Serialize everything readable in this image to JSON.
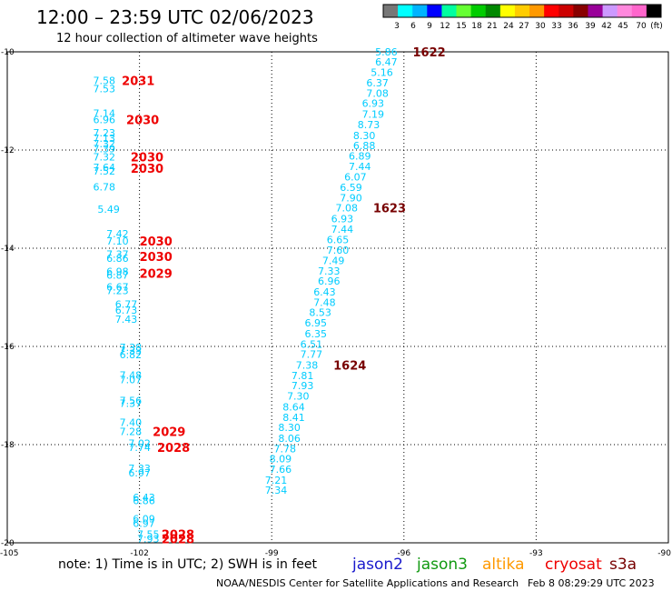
{
  "title": "12:00 – 23:59 UTC 02/06/2023",
  "subtitle": "12 hour collection of altimeter wave heights",
  "colorbar": {
    "labels": [
      "3",
      "6",
      "9",
      "12",
      "15",
      "18",
      "21",
      "24",
      "27",
      "30",
      "33",
      "36",
      "39",
      "42",
      "45",
      "70",
      "(ft)"
    ],
    "colors": [
      "#777777",
      "#00ffff",
      "#00b4ff",
      "#0000ff",
      "#00ffa0",
      "#66ff33",
      "#00cc00",
      "#008800",
      "#ffff00",
      "#ffcc00",
      "#ff9900",
      "#ff0000",
      "#cc0000",
      "#880000",
      "#990099",
      "#cc99ff",
      "#ff88dd",
      "#ff66cc",
      "#000000"
    ]
  },
  "footer": {
    "note": "note:  1) Time is in UTC; 2) SWH is in feet",
    "credit": "NOAA/NESDIS Center for Satellite Applications and Research",
    "timestamp": "Feb  8 08:29:29 UTC 2023"
  },
  "legend": [
    {
      "name": "jason2",
      "color": "#1a1acc"
    },
    {
      "name": "jason3",
      "color": "#119911"
    },
    {
      "name": "altika",
      "color": "#ff9900"
    },
    {
      "name": "cryosat",
      "color": "#ee0000"
    },
    {
      "name": "s3a",
      "color": "#770000"
    }
  ],
  "chart_data": {
    "type": "scatter",
    "title": "12:00 – 23:59 UTC 02/06/2023",
    "subtitle": "12 hour collection of altimeter wave heights",
    "xlim": [
      -105,
      -90
    ],
    "ylim": [
      -20,
      -10
    ],
    "x_ticks": [
      -105,
      -102,
      -99,
      -96,
      -93,
      -90
    ],
    "x_tick_labels": [
      "-105",
      "-102",
      "-99",
      "-96",
      "-93",
      "-90"
    ],
    "y_ticks": [
      -10,
      -12,
      -14,
      -16,
      -18,
      -20
    ],
    "y_tick_labels": [
      "-10",
      "-12",
      "-14",
      "-16",
      "-18",
      "-20"
    ],
    "grid": true,
    "value_color": "#00ccff",
    "series": [
      {
        "name": "cryosat",
        "color": "#ee0000",
        "points": [
          {
            "lon": -102.8,
            "lat": -10.58,
            "swh": "7.58"
          },
          {
            "lon": -102.8,
            "lat": -10.75,
            "swh": "7.53"
          },
          {
            "lon": -102.8,
            "lat": -11.25,
            "swh": "7.14"
          },
          {
            "lon": -102.8,
            "lat": -11.38,
            "swh": "6.96"
          },
          {
            "lon": -102.8,
            "lat": -11.65,
            "swh": "7.23"
          },
          {
            "lon": -102.8,
            "lat": -11.76,
            "swh": "7.13"
          },
          {
            "lon": -102.8,
            "lat": -11.87,
            "swh": "7.32"
          },
          {
            "lon": -102.8,
            "lat": -11.97,
            "swh": "7.39"
          },
          {
            "lon": -102.8,
            "lat": -12.14,
            "swh": "7.32"
          },
          {
            "lon": -102.8,
            "lat": -12.35,
            "swh": "7.64"
          },
          {
            "lon": -102.8,
            "lat": -12.43,
            "swh": "7.52"
          },
          {
            "lon": -102.8,
            "lat": -12.75,
            "swh": "6.78"
          },
          {
            "lon": -102.7,
            "lat": -13.2,
            "swh": "5.49"
          },
          {
            "lon": -102.5,
            "lat": -13.7,
            "swh": "7.42"
          },
          {
            "lon": -102.5,
            "lat": -13.85,
            "swh": "7.10"
          },
          {
            "lon": -102.5,
            "lat": -14.12,
            "swh": "7.37"
          },
          {
            "lon": -102.5,
            "lat": -14.2,
            "swh": "6.86"
          },
          {
            "lon": -102.5,
            "lat": -14.47,
            "swh": "6.98"
          },
          {
            "lon": -102.5,
            "lat": -14.55,
            "swh": "6.87"
          },
          {
            "lon": -102.5,
            "lat": -14.79,
            "swh": "6.67"
          },
          {
            "lon": -102.5,
            "lat": -14.86,
            "swh": "7.23"
          },
          {
            "lon": -102.3,
            "lat": -15.14,
            "swh": "6.77"
          },
          {
            "lon": -102.3,
            "lat": -15.26,
            "swh": "6.73"
          },
          {
            "lon": -102.3,
            "lat": -15.44,
            "swh": "7.43"
          },
          {
            "lon": -102.2,
            "lat": -16.02,
            "swh": "7.38"
          },
          {
            "lon": -102.2,
            "lat": -16.08,
            "swh": "7.33"
          },
          {
            "lon": -102.2,
            "lat": -16.17,
            "swh": "6.82"
          },
          {
            "lon": -102.2,
            "lat": -16.58,
            "swh": "7.48"
          },
          {
            "lon": -102.2,
            "lat": -16.68,
            "swh": "7.07"
          },
          {
            "lon": -102.2,
            "lat": -17.1,
            "swh": "7.56"
          },
          {
            "lon": -102.2,
            "lat": -17.16,
            "swh": "7.37"
          },
          {
            "lon": -102.2,
            "lat": -17.55,
            "swh": "7.40"
          },
          {
            "lon": -102.2,
            "lat": -17.73,
            "swh": "7.28"
          },
          {
            "lon": -102.0,
            "lat": -17.97,
            "swh": "7.02"
          },
          {
            "lon": -102.0,
            "lat": -18.06,
            "swh": "7.74"
          },
          {
            "lon": -102.0,
            "lat": -18.48,
            "swh": "7.33"
          },
          {
            "lon": -102.0,
            "lat": -18.57,
            "swh": "6.97"
          },
          {
            "lon": -101.9,
            "lat": -19.07,
            "swh": "6.43"
          },
          {
            "lon": -101.9,
            "lat": -19.14,
            "swh": "6.86"
          },
          {
            "lon": -101.9,
            "lat": -19.51,
            "swh": "6.09"
          },
          {
            "lon": -101.9,
            "lat": -19.6,
            "swh": "6.97"
          },
          {
            "lon": -101.8,
            "lat": -19.82,
            "swh": "7.55"
          },
          {
            "lon": -101.8,
            "lat": -19.92,
            "swh": "7.93"
          }
        ],
        "time_labels": [
          {
            "lon": -102.4,
            "lat": -10.58,
            "text": "2031"
          },
          {
            "lon": -102.3,
            "lat": -11.38,
            "text": "2030"
          },
          {
            "lon": -102.2,
            "lat": -12.14,
            "text": "2030"
          },
          {
            "lon": -102.2,
            "lat": -12.37,
            "text": "2030"
          },
          {
            "lon": -102.0,
            "lat": -13.85,
            "text": "2030"
          },
          {
            "lon": -102.0,
            "lat": -14.17,
            "text": "2030"
          },
          {
            "lon": -102.0,
            "lat": -14.51,
            "text": "2029"
          },
          {
            "lon": -101.7,
            "lat": -17.73,
            "text": "2029"
          },
          {
            "lon": -101.6,
            "lat": -18.06,
            "text": "2028"
          },
          {
            "lon": -101.5,
            "lat": -19.82,
            "text": "2028"
          },
          {
            "lon": -101.5,
            "lat": -19.92,
            "text": "2028"
          }
        ]
      },
      {
        "name": "s3a",
        "color": "#770000",
        "points": [
          {
            "lon": -96.4,
            "lat": -10.0,
            "swh": "5.86"
          },
          {
            "lon": -96.4,
            "lat": -10.2,
            "swh": "6.47"
          },
          {
            "lon": -96.5,
            "lat": -10.42,
            "swh": "5.16"
          },
          {
            "lon": -96.6,
            "lat": -10.63,
            "swh": "6.37"
          },
          {
            "lon": -96.6,
            "lat": -10.84,
            "swh": "7.08"
          },
          {
            "lon": -96.7,
            "lat": -11.05,
            "swh": "6.93"
          },
          {
            "lon": -96.7,
            "lat": -11.27,
            "swh": "7.19"
          },
          {
            "lon": -96.8,
            "lat": -11.48,
            "swh": "8.73"
          },
          {
            "lon": -96.9,
            "lat": -11.7,
            "swh": "8.30"
          },
          {
            "lon": -96.9,
            "lat": -11.91,
            "swh": "6.88"
          },
          {
            "lon": -97.0,
            "lat": -12.12,
            "swh": "6.89"
          },
          {
            "lon": -97.0,
            "lat": -12.33,
            "swh": "7.44"
          },
          {
            "lon": -97.1,
            "lat": -12.55,
            "swh": "6.07"
          },
          {
            "lon": -97.2,
            "lat": -12.76,
            "swh": "6.59"
          },
          {
            "lon": -97.2,
            "lat": -12.97,
            "swh": "7.90"
          },
          {
            "lon": -97.3,
            "lat": -13.18,
            "swh": "7.08"
          },
          {
            "lon": -97.4,
            "lat": -13.4,
            "swh": "6.93"
          },
          {
            "lon": -97.4,
            "lat": -13.61,
            "swh": "7.44"
          },
          {
            "lon": -97.5,
            "lat": -13.82,
            "swh": "6.65"
          },
          {
            "lon": -97.5,
            "lat": -14.04,
            "swh": "7.60"
          },
          {
            "lon": -97.6,
            "lat": -14.25,
            "swh": "7.49"
          },
          {
            "lon": -97.7,
            "lat": -14.46,
            "swh": "7.33"
          },
          {
            "lon": -97.7,
            "lat": -14.67,
            "swh": "6.96"
          },
          {
            "lon": -97.8,
            "lat": -14.89,
            "swh": "6.43"
          },
          {
            "lon": -97.8,
            "lat": -15.1,
            "swh": "7.48"
          },
          {
            "lon": -97.9,
            "lat": -15.31,
            "swh": "8.53"
          },
          {
            "lon": -98.0,
            "lat": -15.52,
            "swh": "6.95"
          },
          {
            "lon": -98.0,
            "lat": -15.74,
            "swh": "6.35"
          },
          {
            "lon": -98.1,
            "lat": -15.95,
            "swh": "6.51"
          },
          {
            "lon": -98.1,
            "lat": -16.16,
            "swh": "7.77"
          },
          {
            "lon": -98.2,
            "lat": -16.38,
            "swh": "7.38"
          },
          {
            "lon": -98.3,
            "lat": -16.59,
            "swh": "7.81"
          },
          {
            "lon": -98.3,
            "lat": -16.8,
            "swh": "7.93"
          },
          {
            "lon": -98.4,
            "lat": -17.01,
            "swh": "7.30"
          },
          {
            "lon": -98.5,
            "lat": -17.23,
            "swh": "8.64"
          },
          {
            "lon": -98.5,
            "lat": -17.44,
            "swh": "8.41"
          },
          {
            "lon": -98.6,
            "lat": -17.65,
            "swh": "8.30"
          },
          {
            "lon": -98.6,
            "lat": -17.87,
            "swh": "8.06"
          },
          {
            "lon": -98.7,
            "lat": -18.08,
            "swh": "7.78"
          },
          {
            "lon": -98.8,
            "lat": -18.29,
            "swh": "8.09"
          },
          {
            "lon": -98.8,
            "lat": -18.5,
            "swh": "7.66"
          },
          {
            "lon": -98.9,
            "lat": -18.72,
            "swh": "7.21"
          },
          {
            "lon": -98.9,
            "lat": -18.93,
            "swh": "7.34"
          }
        ],
        "time_labels": [
          {
            "lon": -95.8,
            "lat": -10.0,
            "text": "1622"
          },
          {
            "lon": -96.7,
            "lat": -13.18,
            "text": "1623"
          },
          {
            "lon": -97.6,
            "lat": -16.38,
            "text": "1624"
          }
        ]
      }
    ]
  }
}
